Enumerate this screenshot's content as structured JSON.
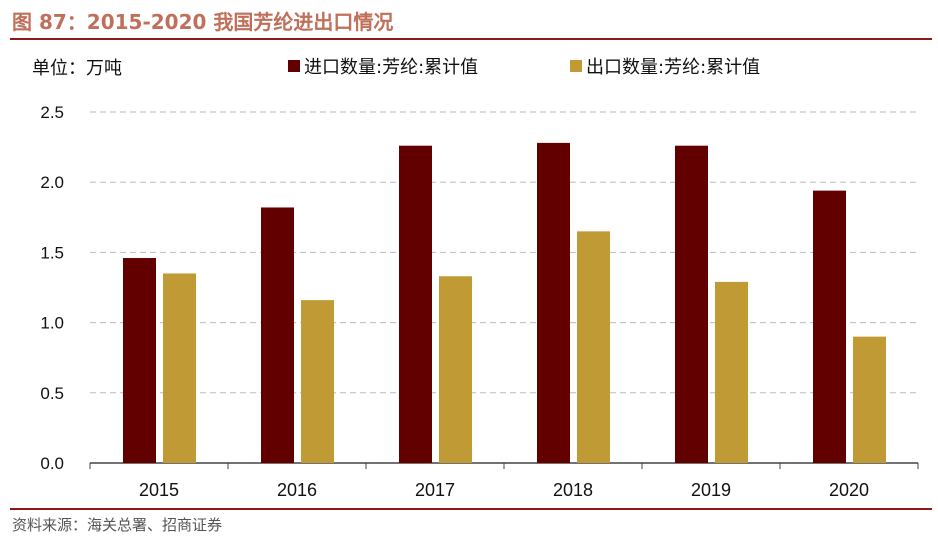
{
  "title": "图 87：2015-2020 我国芳纶进出口情况",
  "source": "资料来源：海关总署、招商证券",
  "chart_data": {
    "type": "bar",
    "unit_label": "单位：万吨",
    "categories": [
      "2015",
      "2016",
      "2017",
      "2018",
      "2019",
      "2020"
    ],
    "series": [
      {
        "name": "进口数量:芳纶:累计值",
        "color": "#620000",
        "values": [
          1.46,
          1.82,
          2.26,
          2.28,
          2.26,
          1.94
        ]
      },
      {
        "name": "出口数量:芳纶:累计值",
        "color": "#c09a35",
        "values": [
          1.35,
          1.16,
          1.33,
          1.65,
          1.29,
          0.9
        ]
      }
    ],
    "yticks": [
      "0.0",
      "0.5",
      "1.0",
      "1.5",
      "2.0",
      "2.5"
    ],
    "ylim": [
      0,
      2.5
    ],
    "grid": true,
    "legend": "top"
  }
}
